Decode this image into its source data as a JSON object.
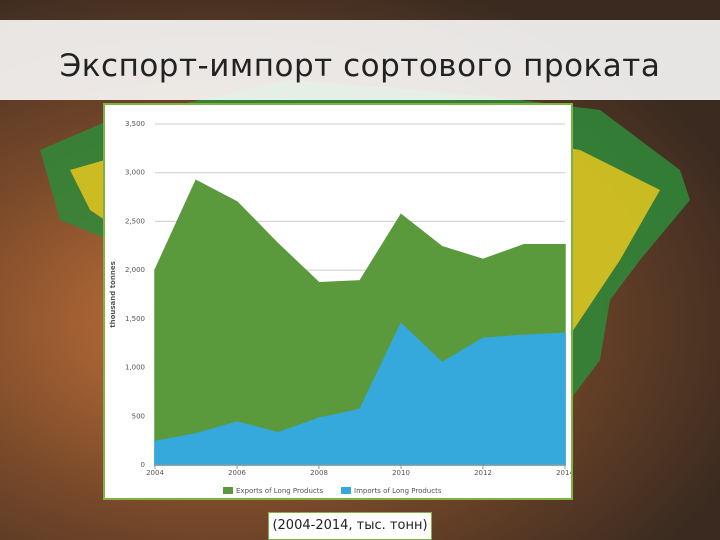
{
  "title": "Экспорт-импорт сортового проката",
  "caption": "(2004-2014, тыс. тонн)",
  "chart_data": {
    "type": "area",
    "y_label": "thousand tonnes",
    "x": [
      2004,
      2005,
      2006,
      2007,
      2008,
      2009,
      2010,
      2011,
      2012,
      2013,
      2014
    ],
    "series": [
      {
        "name": "Exports of Long Products",
        "color": "#5a9a3c",
        "values": [
          2000,
          2920,
          2700,
          2270,
          1870,
          1890,
          2570,
          2240,
          2110,
          2260,
          2260
        ]
      },
      {
        "name": "Imports of Long Products",
        "color": "#35a8dc",
        "values": [
          240,
          320,
          440,
          330,
          480,
          570,
          1450,
          1050,
          1300,
          1330,
          1350
        ]
      }
    ],
    "xlim": [
      2004,
      2014
    ],
    "xticks": [
      2004,
      2006,
      2008,
      2010,
      2012,
      2014
    ],
    "ylim": [
      0,
      3500
    ],
    "yticks": [
      0,
      500,
      {
        "value": 1000,
        "label": "1,000"
      },
      {
        "value": 1500,
        "label": "1,500"
      },
      {
        "value": 2000,
        "label": "2,000"
      },
      {
        "value": 2500,
        "label": "2,500"
      },
      {
        "value": 3000,
        "label": "3,000"
      },
      {
        "value": 3500,
        "label": "3,500"
      }
    ],
    "grid": true
  }
}
